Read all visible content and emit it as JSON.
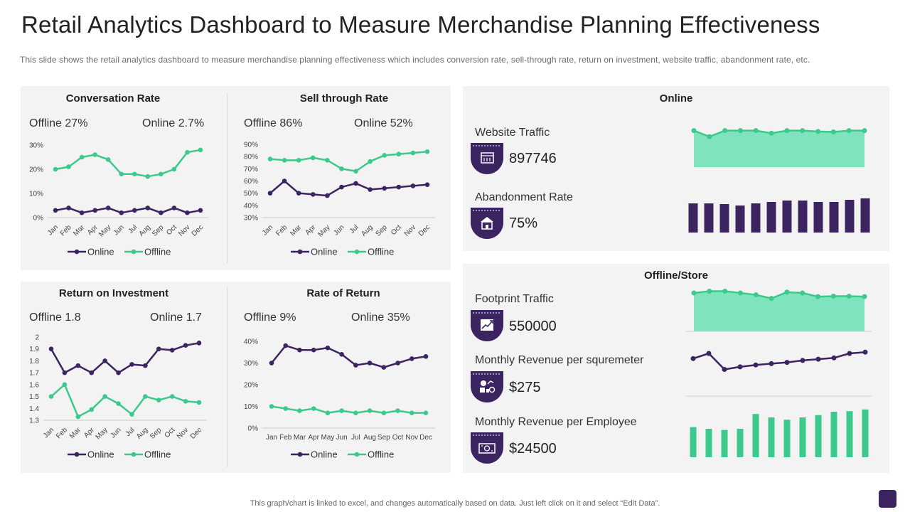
{
  "page": {
    "title": "Retail Analytics Dashboard to Measure Merchandise Planning Effectiveness",
    "subtitle": "This slide shows the retail analytics dashboard to measure merchandise planning effectiveness which includes conversion rate, sell-through rate, return on investment, website traffic, abandonment rate, etc.",
    "footer": "This graph/chart is linked to excel, and changes automatically based on data. Just left click on it and select “Edit Data”."
  },
  "colors": {
    "online": "#3b2460",
    "offline": "#3cc98c",
    "area": "#7fe3bd",
    "panel": "#f3f3f3"
  },
  "legend": {
    "online": "Online",
    "offline": "Offline"
  },
  "conversion": {
    "title": "Conversation Rate",
    "offline_label": "Offline 27%",
    "online_label": "Online 2.7%"
  },
  "sellthrough": {
    "title": "Sell through Rate",
    "offline_label": "Offline 86%",
    "online_label": "Online 52%"
  },
  "roi": {
    "title": "Return on Investment",
    "offline_label": "Offline 1.8",
    "online_label": "Online 1.7"
  },
  "rate_of_return": {
    "title": "Rate of Return",
    "offline_label": "Offline  9%",
    "online_label": "Online  35%"
  },
  "online_section": {
    "title": "Online",
    "website_traffic": {
      "label": "Website Traffic",
      "value": "897746",
      "icon": "web-page-icon"
    },
    "abandonment_rate": {
      "label": "Abandonment Rate",
      "value": "75%",
      "icon": "store-icon"
    }
  },
  "offline_section": {
    "title": "Offline/Store",
    "footprint_traffic": {
      "label": "Footprint Traffic",
      "value": "550000",
      "icon": "growth-chart-icon"
    },
    "revenue_sqm": {
      "label": "Monthly  Revenue  per  squremeter",
      "value": "$275",
      "icon": "revenue-icon"
    },
    "revenue_employee": {
      "label": "Monthly  Revenue  per  Employee",
      "value": "$24500",
      "icon": "money-icon"
    }
  },
  "chart_data": [
    {
      "id": "conversion",
      "type": "line",
      "title": "Conversation Rate",
      "categories": [
        "Jan",
        "Feb",
        "Mar",
        "Apr",
        "May",
        "Jun",
        "Jul",
        "Aug",
        "Sep",
        "Oct",
        "Nov",
        "Dec"
      ],
      "ylim": [
        0,
        30
      ],
      "yticks": [
        0,
        10,
        20,
        30
      ],
      "ytick_labels": [
        "0%",
        "10%",
        "20%",
        "30%"
      ],
      "series": [
        {
          "name": "Online",
          "values": [
            3,
            4,
            2,
            3,
            4,
            2,
            3,
            4,
            2,
            4,
            2,
            3
          ]
        },
        {
          "name": "Offline",
          "values": [
            20,
            21,
            25,
            26,
            24,
            18,
            18,
            17,
            18,
            20,
            27,
            28
          ]
        }
      ]
    },
    {
      "id": "sellthrough",
      "type": "line",
      "title": "Sell through Rate",
      "categories": [
        "Jan",
        "Feb",
        "Mar",
        "Apr",
        "May",
        "Jun",
        "Jul",
        "Aug",
        "Sep",
        "Oct",
        "Nov",
        "Dec"
      ],
      "ylim": [
        30,
        90
      ],
      "yticks": [
        30,
        40,
        50,
        60,
        70,
        80,
        90
      ],
      "ytick_labels": [
        "30%",
        "40%",
        "50%",
        "60%",
        "70%",
        "80%",
        "90%"
      ],
      "series": [
        {
          "name": "Online",
          "values": [
            50,
            60,
            50,
            49,
            48,
            55,
            58,
            53,
            54,
            55,
            56,
            57
          ]
        },
        {
          "name": "Offline",
          "values": [
            78,
            77,
            77,
            79,
            77,
            70,
            68,
            76,
            81,
            82,
            83,
            84
          ]
        }
      ]
    },
    {
      "id": "roi",
      "type": "line",
      "title": "Return on Investment",
      "categories": [
        "Jan",
        "Feb",
        "Mar",
        "Apr",
        "May",
        "Jun",
        "Jul",
        "Aug",
        "Sep",
        "Oct",
        "Nov",
        "Dec"
      ],
      "ylim": [
        1.3,
        2.0
      ],
      "yticks": [
        1.3,
        1.4,
        1.5,
        1.6,
        1.7,
        1.8,
        1.9,
        2.0
      ],
      "ytick_labels": [
        "1.3",
        "1.4",
        "1.5",
        "1.6",
        "1.7",
        "1.8",
        "1.9",
        "2"
      ],
      "series": [
        {
          "name": "Online",
          "values": [
            1.9,
            1.7,
            1.76,
            1.7,
            1.8,
            1.7,
            1.77,
            1.76,
            1.9,
            1.89,
            1.93,
            1.95
          ]
        },
        {
          "name": "Offline",
          "values": [
            1.5,
            1.6,
            1.33,
            1.39,
            1.5,
            1.44,
            1.35,
            1.5,
            1.47,
            1.5,
            1.46,
            1.45
          ]
        }
      ]
    },
    {
      "id": "rate_of_return",
      "type": "line",
      "title": "Rate of Return",
      "categories": [
        "Jan",
        "Feb",
        "Mar",
        "Apr",
        "May",
        "Jun",
        "Jul",
        "Aug",
        "Sep",
        "Oct",
        "Nov",
        "Dec"
      ],
      "ylim": [
        0,
        40
      ],
      "yticks": [
        0,
        10,
        20,
        30,
        40
      ],
      "ytick_labels": [
        "0%",
        "10%",
        "20%",
        "30%",
        "40%"
      ],
      "series": [
        {
          "name": "Online",
          "values": [
            30,
            38,
            36,
            36,
            37,
            34,
            29,
            30,
            28,
            30,
            32,
            33
          ]
        },
        {
          "name": "Offline",
          "values": [
            10,
            9,
            8,
            9,
            7,
            8,
            7,
            8,
            7,
            8,
            7,
            7
          ]
        }
      ]
    },
    {
      "id": "website_traffic_spark",
      "type": "area",
      "values": [
        84,
        70,
        84,
        84,
        84,
        78,
        84,
        84,
        82,
        81,
        84,
        84
      ],
      "ylim": [
        0,
        100
      ]
    },
    {
      "id": "abandonment_spark",
      "type": "bar",
      "values": [
        82,
        82,
        80,
        76,
        82,
        86,
        90,
        90,
        86,
        86,
        92,
        96
      ],
      "ylim": [
        0,
        100
      ]
    },
    {
      "id": "footprint_spark",
      "type": "area",
      "values": [
        92,
        96,
        96,
        92,
        88,
        80,
        94,
        92,
        84,
        85,
        85,
        84
      ],
      "ylim": [
        0,
        100
      ]
    },
    {
      "id": "revenue_sqm_spark",
      "type": "line",
      "values": [
        64,
        80,
        30,
        38,
        44,
        48,
        52,
        58,
        62,
        66,
        80,
        84
      ],
      "ylim": [
        0,
        100
      ]
    },
    {
      "id": "revenue_employee_spark",
      "type": "bar",
      "values": [
        53,
        50,
        48,
        50,
        76,
        70,
        66,
        70,
        74,
        80,
        81,
        84
      ],
      "ylim": [
        0,
        100
      ]
    }
  ]
}
